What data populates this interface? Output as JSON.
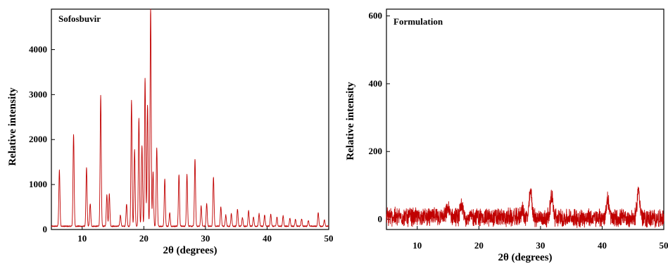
{
  "chart_data": [
    {
      "type": "line",
      "title": "Sofosbuvir",
      "xlabel": "2θ (degrees)",
      "ylabel": "Relative intensity",
      "xlim": [
        5,
        50
      ],
      "ylim": [
        0,
        4900
      ],
      "xticks": [
        10,
        20,
        30,
        40,
        50
      ],
      "yticks": [
        0,
        1000,
        2000,
        3000,
        4000
      ],
      "grid": false,
      "series_color": "#c00000",
      "baseline": 60,
      "peaks": [
        {
          "x": 6.3,
          "y": 1250
        },
        {
          "x": 8.6,
          "y": 2050
        },
        {
          "x": 10.7,
          "y": 1300
        },
        {
          "x": 11.3,
          "y": 500
        },
        {
          "x": 13.0,
          "y": 2900
        },
        {
          "x": 14.0,
          "y": 700
        },
        {
          "x": 14.4,
          "y": 720
        },
        {
          "x": 16.2,
          "y": 250
        },
        {
          "x": 17.2,
          "y": 500
        },
        {
          "x": 18.0,
          "y": 2800
        },
        {
          "x": 18.5,
          "y": 1700
        },
        {
          "x": 19.2,
          "y": 2400
        },
        {
          "x": 19.7,
          "y": 1800
        },
        {
          "x": 20.2,
          "y": 3300
        },
        {
          "x": 20.6,
          "y": 2700
        },
        {
          "x": 21.1,
          "y": 4900
        },
        {
          "x": 21.5,
          "y": 1200
        },
        {
          "x": 22.1,
          "y": 1750
        },
        {
          "x": 23.4,
          "y": 1050
        },
        {
          "x": 24.2,
          "y": 300
        },
        {
          "x": 25.7,
          "y": 1150
        },
        {
          "x": 27.0,
          "y": 1150
        },
        {
          "x": 28.3,
          "y": 1500
        },
        {
          "x": 29.3,
          "y": 450
        },
        {
          "x": 30.2,
          "y": 500
        },
        {
          "x": 31.3,
          "y": 1100
        },
        {
          "x": 32.5,
          "y": 430
        },
        {
          "x": 33.3,
          "y": 250
        },
        {
          "x": 34.2,
          "y": 280
        },
        {
          "x": 35.2,
          "y": 380
        },
        {
          "x": 36.0,
          "y": 200
        },
        {
          "x": 37.0,
          "y": 350
        },
        {
          "x": 37.8,
          "y": 200
        },
        {
          "x": 38.7,
          "y": 280
        },
        {
          "x": 39.6,
          "y": 250
        },
        {
          "x": 40.6,
          "y": 270
        },
        {
          "x": 41.6,
          "y": 200
        },
        {
          "x": 42.6,
          "y": 230
        },
        {
          "x": 43.7,
          "y": 180
        },
        {
          "x": 44.6,
          "y": 150
        },
        {
          "x": 45.6,
          "y": 160
        },
        {
          "x": 46.7,
          "y": 130
        },
        {
          "x": 48.3,
          "y": 300
        },
        {
          "x": 49.3,
          "y": 150
        }
      ]
    },
    {
      "type": "line",
      "title": "Formulation",
      "xlabel": "2θ (degrees)",
      "ylabel": "Relative intensity",
      "xlim": [
        5,
        50
      ],
      "ylim": [
        -30,
        620
      ],
      "xticks": [
        10,
        20,
        30,
        40,
        50
      ],
      "yticks": [
        0,
        200,
        400,
        600
      ],
      "grid": false,
      "series_color": "#c00000",
      "baseline": 8,
      "noise_amplitude": 22,
      "peaks": [
        {
          "x": 15.0,
          "y": 25
        },
        {
          "x": 17.2,
          "y": 30
        },
        {
          "x": 27.0,
          "y": 20
        },
        {
          "x": 28.4,
          "y": 75
        },
        {
          "x": 31.8,
          "y": 65
        },
        {
          "x": 40.9,
          "y": 55
        },
        {
          "x": 45.9,
          "y": 85
        }
      ]
    }
  ]
}
